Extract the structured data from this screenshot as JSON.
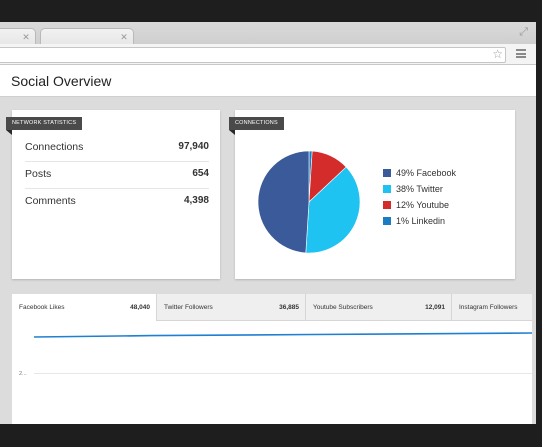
{
  "header": {
    "title": "Social Overview"
  },
  "network_statistics": {
    "label": "NETWORK STATISTICS",
    "rows": [
      {
        "label": "Connections",
        "value": "97,940"
      },
      {
        "label": "Posts",
        "value": "654"
      },
      {
        "label": "Comments",
        "value": "4,398"
      }
    ]
  },
  "connections": {
    "label": "CONNECTIONS",
    "legend": [
      {
        "label": "49% Facebook",
        "color": "#3a5a9a",
        "percent": 49
      },
      {
        "label": "38% Twitter",
        "color": "#1ec3f2",
        "percent": 38
      },
      {
        "label": "12% Youtube",
        "color": "#d42b2b",
        "percent": 12
      },
      {
        "label": "1% Linkedin",
        "color": "#1b7cc2",
        "percent": 1
      }
    ]
  },
  "metric_tabs": [
    {
      "label": "Facebook Likes",
      "value": "48,040",
      "active": true
    },
    {
      "label": "Twitter Followers",
      "value": "36,885",
      "active": false
    },
    {
      "label": "Youtube Subscribers",
      "value": "12,091",
      "active": false
    },
    {
      "label": "Instagram Followers",
      "value": "",
      "active": false
    }
  ],
  "chart": {
    "y_tick": "2..."
  },
  "colors": {
    "line": "#1f7fd1",
    "accent_dark": "#4a4a4a"
  },
  "icons": {
    "close": "close-icon",
    "expand": "expand-icon",
    "star": "star-icon",
    "menu": "menu-icon"
  }
}
